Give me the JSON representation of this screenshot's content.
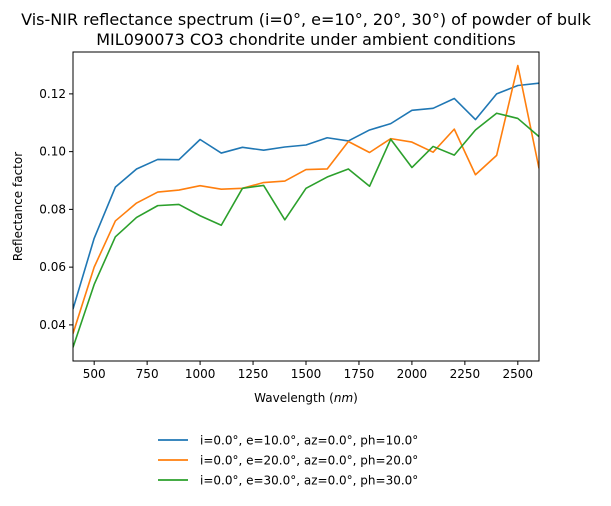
{
  "chart_data": {
    "type": "line",
    "title_lines": [
      "Vis-NIR reflectance spectrum (i=0°, e=10°, 20°, 30°) of powder of bulk",
      "MIL090073 CO3 chondrite under ambient conditions"
    ],
    "xlabel_main": "Wavelength (",
    "xlabel_unit": "nm",
    "xlabel_close": ")",
    "ylabel": "Reflectance factor",
    "xlim": [
      400,
      2600
    ],
    "ylim": [
      0.0275,
      0.1345
    ],
    "xticks": [
      500,
      750,
      1000,
      1250,
      1500,
      1750,
      2000,
      2250,
      2500
    ],
    "yticks": [
      0.04,
      0.06,
      0.08,
      0.1,
      0.12
    ],
    "ytick_labels": [
      "0.04",
      "0.06",
      "0.08",
      "0.10",
      "0.12"
    ],
    "x": [
      400,
      500,
      600,
      700,
      800,
      900,
      1000,
      1100,
      1200,
      1300,
      1400,
      1500,
      1600,
      1700,
      1800,
      1900,
      2000,
      2100,
      2200,
      2300,
      2400,
      2500,
      2600
    ],
    "series": [
      {
        "name": "i=0.0°, e=10.0°, az=0.0°, ph=10.0°",
        "color": "#1f77b4",
        "values": [
          0.0455,
          0.07,
          0.0877,
          0.094,
          0.0973,
          0.0972,
          0.1042,
          0.0995,
          0.1015,
          0.1005,
          0.1016,
          0.1023,
          0.1048,
          0.1037,
          0.1075,
          0.1097,
          0.1143,
          0.115,
          0.1184,
          0.1111,
          0.12,
          0.1229,
          0.1237
        ]
      },
      {
        "name": "i=0.0°, e=20.0°, az=0.0°, ph=20.0°",
        "color": "#ff7f0e",
        "values": [
          0.037,
          0.06,
          0.076,
          0.0822,
          0.086,
          0.0867,
          0.0882,
          0.087,
          0.0873,
          0.0893,
          0.0898,
          0.0938,
          0.094,
          0.1035,
          0.0997,
          0.1045,
          0.1033,
          0.0998,
          0.1078,
          0.092,
          0.0987,
          0.1298,
          0.0942
        ]
      },
      {
        "name": "i=0.0°, e=30.0°, az=0.0°, ph=30.0°",
        "color": "#2ca02c",
        "values": [
          0.0322,
          0.054,
          0.0705,
          0.0772,
          0.0813,
          0.0817,
          0.0778,
          0.0745,
          0.0873,
          0.0883,
          0.0764,
          0.0873,
          0.0912,
          0.094,
          0.088,
          0.1043,
          0.0945,
          0.1018,
          0.0988,
          0.1075,
          0.1133,
          0.1115,
          0.1052
        ]
      }
    ],
    "grid": false,
    "legend_position": "below-center"
  }
}
